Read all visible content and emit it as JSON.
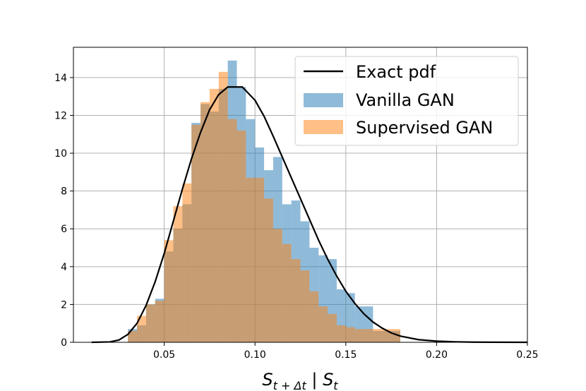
{
  "chart_data": {
    "type": "histogram",
    "xlabel": "S_{t+Δt} | S_t",
    "xlabel_parts": {
      "main1": "S",
      "sub1": "t + Δt",
      "sep": " | ",
      "main2": "S",
      "sub2": "t"
    },
    "ylabel": "",
    "xlim": [
      0.0,
      0.25
    ],
    "ylim": [
      0,
      15.6
    ],
    "xticks": [
      0.05,
      0.1,
      0.15,
      0.2,
      0.25
    ],
    "xtick_labels": [
      "0.05",
      "0.10",
      "0.15",
      "0.20",
      "0.25"
    ],
    "yticks": [
      0,
      2,
      4,
      6,
      8,
      10,
      12,
      14
    ],
    "ytick_labels": [
      "0",
      "2",
      "4",
      "6",
      "8",
      "10",
      "12",
      "14"
    ],
    "grid": true,
    "legend_position": "upper right",
    "series": [
      {
        "name": "Exact pdf",
        "kind": "line",
        "color": "#000000",
        "x": [
          0.01,
          0.02,
          0.025,
          0.03,
          0.035,
          0.04,
          0.045,
          0.05,
          0.055,
          0.06,
          0.065,
          0.07,
          0.075,
          0.08,
          0.085,
          0.09,
          0.093,
          0.095,
          0.1,
          0.105,
          0.11,
          0.115,
          0.12,
          0.125,
          0.13,
          0.135,
          0.14,
          0.145,
          0.15,
          0.155,
          0.16,
          0.165,
          0.17,
          0.175,
          0.18,
          0.19,
          0.2,
          0.21,
          0.22,
          0.23,
          0.25
        ],
        "y": [
          0.0,
          0.02,
          0.12,
          0.42,
          1.0,
          1.95,
          3.2,
          4.7,
          6.4,
          8.1,
          9.7,
          11.1,
          12.3,
          13.1,
          13.5,
          13.5,
          13.5,
          13.3,
          12.8,
          11.95,
          10.9,
          9.8,
          8.7,
          7.6,
          6.5,
          5.4,
          4.4,
          3.5,
          2.7,
          2.05,
          1.5,
          1.07,
          0.75,
          0.5,
          0.33,
          0.14,
          0.06,
          0.025,
          0.01,
          0.004,
          0.0
        ]
      },
      {
        "name": "Vanilla GAN",
        "kind": "histogram",
        "color": "#1f77b4",
        "bin_width": 0.005,
        "bin_starts": [
          0.03,
          0.035,
          0.04,
          0.045,
          0.05,
          0.055,
          0.06,
          0.065,
          0.07,
          0.075,
          0.08,
          0.085,
          0.09,
          0.095,
          0.1,
          0.105,
          0.11,
          0.115,
          0.12,
          0.125,
          0.13,
          0.135,
          0.14,
          0.145,
          0.15,
          0.155,
          0.16,
          0.165,
          0.17,
          0.175,
          0.18,
          0.185
        ],
        "values": [
          0.7,
          0.9,
          2.0,
          2.3,
          4.8,
          6.0,
          7.3,
          11.6,
          12.6,
          12.2,
          13.4,
          14.9,
          13.5,
          11.8,
          10.3,
          9.1,
          9.8,
          7.3,
          7.5,
          6.4,
          5.0,
          4.6,
          4.4,
          2.8,
          2.6,
          1.9,
          1.9,
          0.6,
          0.6,
          0.6,
          0.0,
          0.0
        ]
      },
      {
        "name": "Supervised GAN",
        "kind": "histogram",
        "color": "#ff7f0e",
        "bin_width": 0.005,
        "bin_starts": [
          0.03,
          0.035,
          0.04,
          0.045,
          0.05,
          0.055,
          0.06,
          0.065,
          0.07,
          0.075,
          0.08,
          0.085,
          0.09,
          0.095,
          0.1,
          0.105,
          0.11,
          0.115,
          0.12,
          0.125,
          0.13,
          0.135,
          0.14,
          0.145,
          0.15,
          0.155,
          0.16,
          0.165,
          0.17,
          0.175,
          0.18,
          0.185
        ],
        "values": [
          0.6,
          1.4,
          2.0,
          2.2,
          5.4,
          7.2,
          8.4,
          11.5,
          12.7,
          13.4,
          14.3,
          11.8,
          11.2,
          8.7,
          8.7,
          7.6,
          6.0,
          5.2,
          4.4,
          3.8,
          2.7,
          1.9,
          1.5,
          0.9,
          0.8,
          0.7,
          0.7,
          0.7,
          0.7,
          0.7,
          0.0,
          0.0
        ]
      }
    ],
    "legend": [
      {
        "label": "Exact pdf",
        "swatch": "line",
        "color": "#000000"
      },
      {
        "label": "Vanilla GAN",
        "swatch": "patch",
        "color": "#1f77b4"
      },
      {
        "label": "Supervised GAN",
        "swatch": "patch",
        "color": "#ff7f0e"
      }
    ]
  }
}
